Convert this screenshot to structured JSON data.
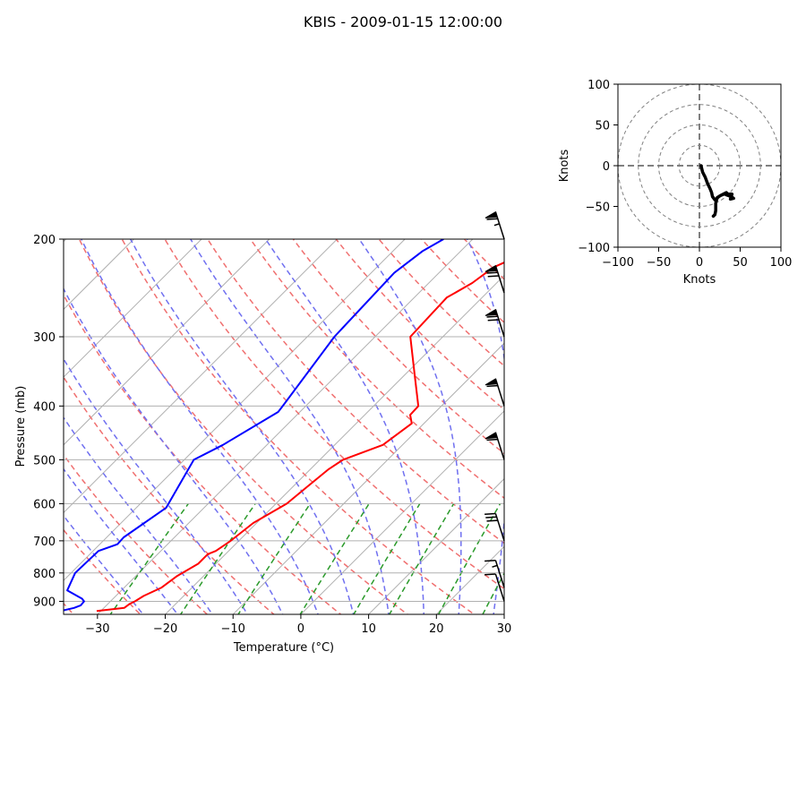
{
  "title": "KBIS - 2009-01-15 12:00:00",
  "chart_data": [
    {
      "type": "skewt",
      "xlabel": "Temperature ($^\\circ$C)",
      "xlabel_display": "Temperature (°C)",
      "ylabel": "Pressure (mb)",
      "xlim": [
        -35,
        30
      ],
      "ylim": [
        950,
        200
      ],
      "xticks": [
        -30,
        -20,
        -10,
        0,
        10,
        20,
        30
      ],
      "yticks": [
        200,
        300,
        400,
        500,
        600,
        700,
        800,
        900
      ],
      "y_scale": "log",
      "grid": true,
      "colors": {
        "temperature": "#ff0000",
        "dewpoint": "#0000ff",
        "dry_adiabats": "#f07070",
        "moist_adiabats": "#7070f0",
        "mixing_ratio": "#2a9a2a",
        "isotherms": "#b0b0b0"
      },
      "temperature": {
        "pressure": [
          937,
          925,
          910,
          900,
          880,
          850,
          810,
          770,
          740,
          730,
          700,
          650,
          600,
          560,
          520,
          500,
          470,
          430,
          415,
          400,
          350,
          300,
          255,
          240,
          225,
          215,
          205,
          200
        ],
        "temp_at_p": [
          -30.6,
          -27.0,
          -26.8,
          -26.4,
          -25.9,
          -24.5,
          -23.9,
          -22.6,
          -22.6,
          -21.9,
          -21.2,
          -20.5,
          -18.4,
          -17.9,
          -17.3,
          -16.6,
          -12.9,
          -11.8,
          -13.3,
          -13.4,
          -18.7,
          -24.8,
          -25.2,
          -23.6,
          -22.8,
          -20.8,
          -18.3,
          -18.8
        ]
      },
      "dewpoint": {
        "pressure": [
          935,
          925,
          915,
          900,
          890,
          860,
          800,
          730,
          710,
          690,
          610,
          500,
          470,
          410,
          400,
          300,
          230,
          210,
          200
        ],
        "temp_at_p": [
          -35.7,
          -34.4,
          -33.8,
          -33.9,
          -34.6,
          -38.0,
          -39.4,
          -39.2,
          -37.4,
          -37.5,
          -35.6,
          -38.6,
          -36.5,
          -33.2,
          -33.4,
          -36.0,
          -36.6,
          -35.6,
          -34.3
        ]
      },
      "wind_barbs": [
        {
          "p": 900,
          "speed_kt": 10
        },
        {
          "p": 850,
          "speed_kt": 15
        },
        {
          "p": 700,
          "speed_kt": 30
        },
        {
          "p": 500,
          "speed_kt": 60
        },
        {
          "p": 400,
          "speed_kt": 60
        },
        {
          "p": 300,
          "speed_kt": 70
        },
        {
          "p": 250,
          "speed_kt": 70
        },
        {
          "p": 200,
          "speed_kt": 65
        }
      ]
    },
    {
      "type": "hodograph",
      "xlabel": "Knots",
      "ylabel": "Knots",
      "xlim": [
        -100,
        100
      ],
      "ylim": [
        -100,
        100
      ],
      "xticks": [
        -100,
        -50,
        0,
        50,
        100
      ],
      "yticks": [
        100,
        50,
        0,
        -50,
        -100
      ],
      "rings": [
        25,
        50,
        75,
        100
      ],
      "u": [
        2,
        4,
        7,
        10,
        13,
        15,
        16,
        19,
        25,
        30,
        31,
        39,
        38,
        42,
        39,
        40,
        35,
        33,
        33,
        27,
        22,
        20,
        20,
        19,
        17
      ],
      "v": [
        0,
        -8,
        -14,
        -22,
        -28,
        -33,
        -38,
        -42,
        -37,
        -35,
        -35,
        -38,
        -41,
        -40,
        -38,
        -35,
        -35,
        -33,
        -33,
        -36,
        -39,
        -46,
        -55,
        -60,
        -62
      ]
    }
  ]
}
